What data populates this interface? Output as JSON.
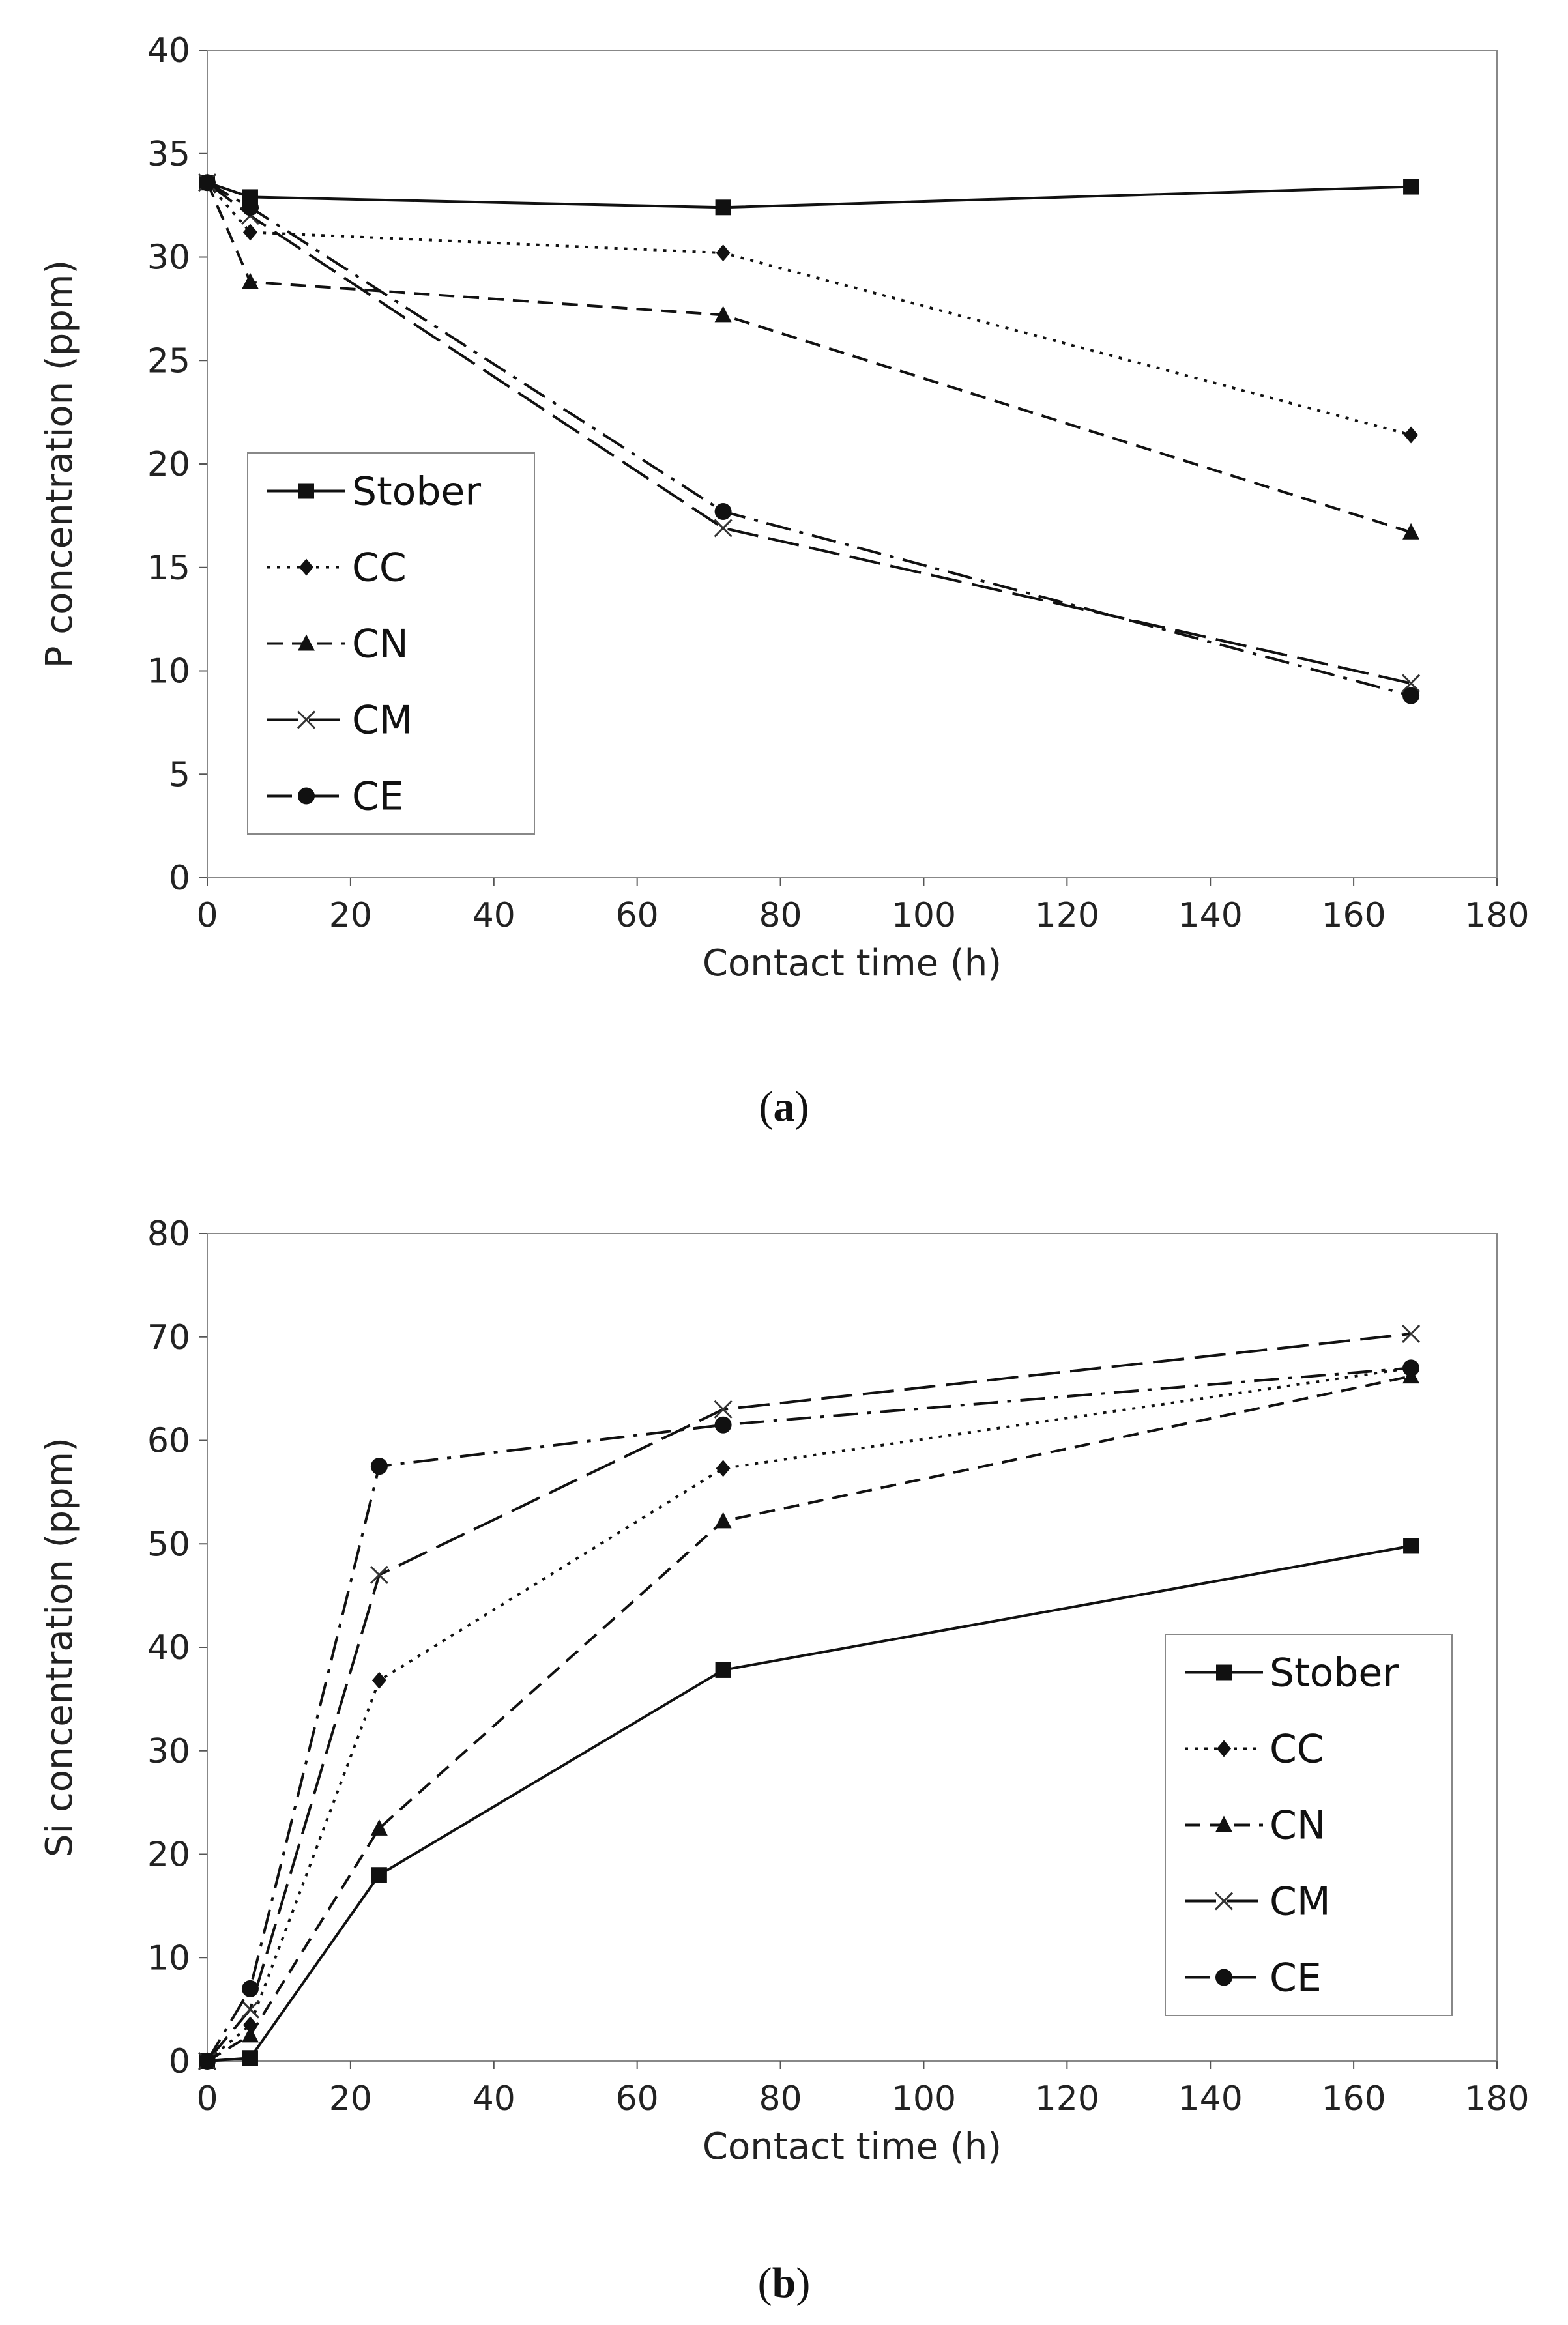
{
  "chart_data": [
    {
      "type": "line",
      "panel": "a",
      "caption_letter": "a",
      "xlabel": "Contact time (h)",
      "ylabel": "P concentration (ppm)",
      "xlim": [
        0,
        180
      ],
      "ylim": [
        0,
        40
      ],
      "xticks": [
        0,
        20,
        40,
        60,
        80,
        100,
        120,
        140,
        160,
        180
      ],
      "yticks": [
        0,
        5,
        10,
        15,
        20,
        25,
        30,
        35,
        40
      ],
      "legend_position": "lower-left",
      "series": [
        {
          "name": "Stober",
          "marker": "square",
          "dash": "solid",
          "x": [
            0,
            6,
            72,
            168
          ],
          "y": [
            33.6,
            32.9,
            32.4,
            33.4
          ]
        },
        {
          "name": "CC",
          "marker": "diamond",
          "dash": "dotted",
          "x": [
            0,
            6,
            72,
            168
          ],
          "y": [
            33.6,
            31.2,
            30.2,
            21.4
          ]
        },
        {
          "name": "CN",
          "marker": "triangle",
          "dash": "dashed",
          "x": [
            0,
            6,
            72,
            168
          ],
          "y": [
            33.6,
            28.8,
            27.2,
            16.7
          ]
        },
        {
          "name": "CM",
          "marker": "x",
          "dash": "longdash",
          "x": [
            0,
            6,
            72,
            168
          ],
          "y": [
            33.6,
            32.0,
            16.9,
            9.4
          ]
        },
        {
          "name": "CE",
          "marker": "circle",
          "dash": "dashdot",
          "x": [
            0,
            6,
            72,
            168
          ],
          "y": [
            33.6,
            32.4,
            17.7,
            8.8
          ]
        }
      ]
    },
    {
      "type": "line",
      "panel": "b",
      "caption_letter": "b",
      "xlabel": "Contact time (h)",
      "ylabel": "Si concentration (ppm)",
      "xlim": [
        0,
        180
      ],
      "ylim": [
        0,
        80
      ],
      "xticks": [
        0,
        20,
        40,
        60,
        80,
        100,
        120,
        140,
        160,
        180
      ],
      "yticks": [
        0,
        10,
        20,
        30,
        40,
        50,
        60,
        70,
        80
      ],
      "legend_position": "right",
      "series": [
        {
          "name": "Stober",
          "marker": "square",
          "dash": "solid",
          "x": [
            0,
            6,
            24,
            72,
            168
          ],
          "y": [
            0,
            0.3,
            18.0,
            37.8,
            49.8
          ]
        },
        {
          "name": "CC",
          "marker": "diamond",
          "dash": "dotted",
          "x": [
            0,
            6,
            24,
            72,
            168
          ],
          "y": [
            0,
            3.5,
            36.8,
            57.3,
            67.0
          ]
        },
        {
          "name": "CN",
          "marker": "triangle",
          "dash": "dashed",
          "x": [
            0,
            6,
            24,
            72,
            168
          ],
          "y": [
            0,
            2.5,
            22.5,
            52.2,
            66.2
          ]
        },
        {
          "name": "CM",
          "marker": "x",
          "dash": "longdash",
          "x": [
            0,
            6,
            24,
            72,
            168
          ],
          "y": [
            0,
            5.0,
            47.0,
            63.0,
            70.3
          ]
        },
        {
          "name": "CE",
          "marker": "circle",
          "dash": "dashdot",
          "x": [
            0,
            6,
            24,
            72,
            168
          ],
          "y": [
            0,
            7.0,
            57.5,
            61.5,
            67.0
          ]
        }
      ]
    }
  ]
}
